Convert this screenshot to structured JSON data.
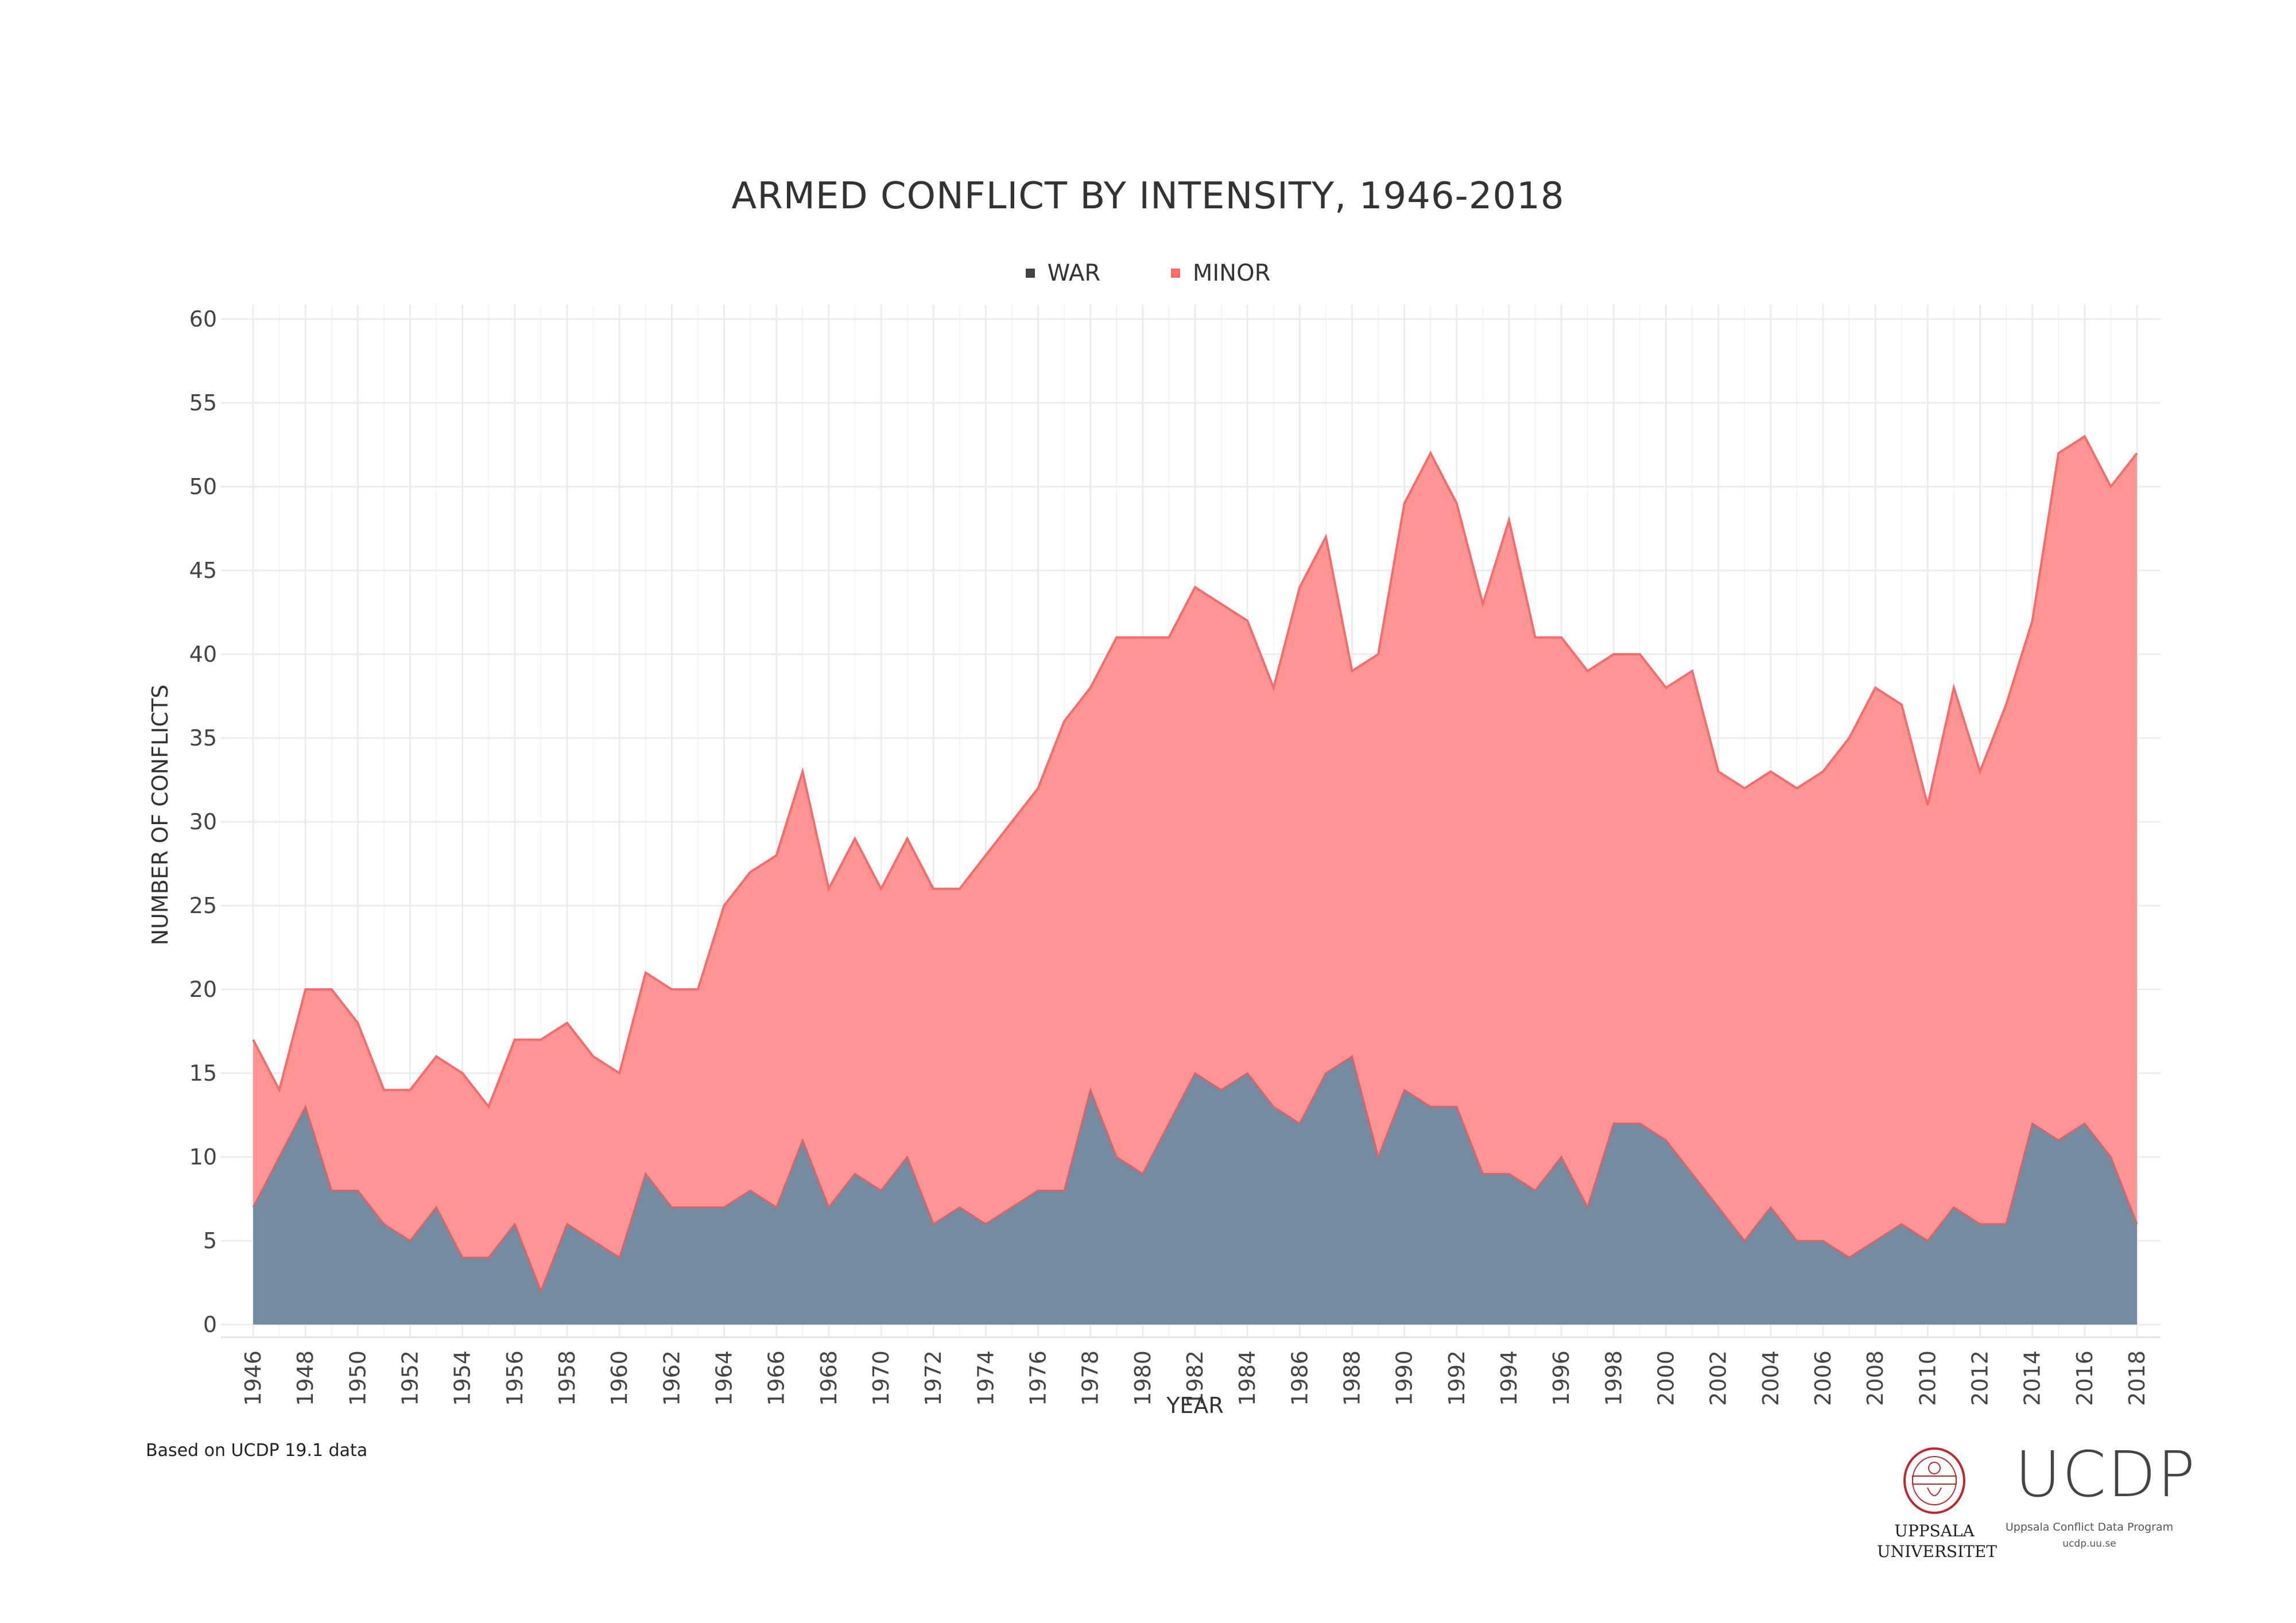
{
  "chart_data": {
    "type": "area",
    "stacked": true,
    "title": "ARMED CONFLICT BY INTENSITY, 1946-2018",
    "xlabel": "YEAR",
    "ylabel": "NUMBER OF CONFLICTS",
    "ylim": [
      0,
      60
    ],
    "yticks": [
      0,
      5,
      10,
      15,
      20,
      25,
      30,
      35,
      40,
      45,
      50,
      55,
      60
    ],
    "xlim": [
      1946,
      2018
    ],
    "xticks": [
      1946,
      1948,
      1950,
      1952,
      1954,
      1956,
      1958,
      1960,
      1962,
      1964,
      1966,
      1968,
      1970,
      1972,
      1974,
      1976,
      1978,
      1980,
      1982,
      1984,
      1986,
      1988,
      1990,
      1992,
      1994,
      1996,
      1998,
      2000,
      2002,
      2004,
      2006,
      2008,
      2010,
      2012,
      2014,
      2016,
      2018
    ],
    "grid": true,
    "legend_position": "top",
    "x": [
      1946,
      1947,
      1948,
      1949,
      1950,
      1951,
      1952,
      1953,
      1954,
      1955,
      1956,
      1957,
      1958,
      1959,
      1960,
      1961,
      1962,
      1963,
      1964,
      1965,
      1966,
      1967,
      1968,
      1969,
      1970,
      1971,
      1972,
      1973,
      1974,
      1975,
      1976,
      1977,
      1978,
      1979,
      1980,
      1981,
      1982,
      1983,
      1984,
      1985,
      1986,
      1987,
      1988,
      1989,
      1990,
      1991,
      1992,
      1993,
      1994,
      1995,
      1996,
      1997,
      1998,
      1999,
      2000,
      2001,
      2002,
      2003,
      2004,
      2005,
      2006,
      2007,
      2008,
      2009,
      2010,
      2011,
      2012,
      2013,
      2014,
      2015,
      2016,
      2017,
      2018
    ],
    "series": [
      {
        "name": "WAR",
        "color": "#758ba0",
        "values": [
          7,
          10,
          13,
          8,
          8,
          6,
          5,
          7,
          4,
          4,
          6,
          2,
          6,
          5,
          4,
          9,
          7,
          7,
          7,
          8,
          7,
          11,
          7,
          9,
          8,
          10,
          6,
          7,
          6,
          7,
          8,
          8,
          14,
          10,
          9,
          12,
          15,
          14,
          15,
          13,
          12,
          15,
          16,
          10,
          14,
          13,
          13,
          9,
          9,
          8,
          10,
          7,
          12,
          12,
          11,
          9,
          7,
          5,
          7,
          5,
          5,
          4,
          5,
          6,
          5,
          7,
          6,
          6,
          12,
          11,
          12,
          10,
          6
        ]
      },
      {
        "name": "MINOR",
        "color": "#ff8e8e",
        "values": [
          10,
          4,
          7,
          12,
          10,
          8,
          9,
          9,
          11,
          9,
          11,
          15,
          12,
          11,
          11,
          12,
          13,
          13,
          18,
          19,
          21,
          22,
          19,
          20,
          18,
          19,
          20,
          19,
          22,
          23,
          24,
          28,
          24,
          31,
          32,
          29,
          29,
          29,
          27,
          25,
          32,
          32,
          23,
          30,
          35,
          39,
          36,
          34,
          39,
          33,
          31,
          32,
          28,
          28,
          27,
          30,
          26,
          27,
          26,
          27,
          28,
          31,
          33,
          31,
          26,
          31,
          27,
          31,
          30,
          41,
          41,
          40,
          46
        ]
      }
    ]
  },
  "footnote": "Based on UCDP 19.1 data",
  "logos": {
    "university_line1": "UPPSALA",
    "university_line2": "UNIVERSITET",
    "ucdp": "UCDP",
    "ucdp_full": "Uppsala Conflict Data Program",
    "ucdp_url": "ucdp.uu.se"
  }
}
